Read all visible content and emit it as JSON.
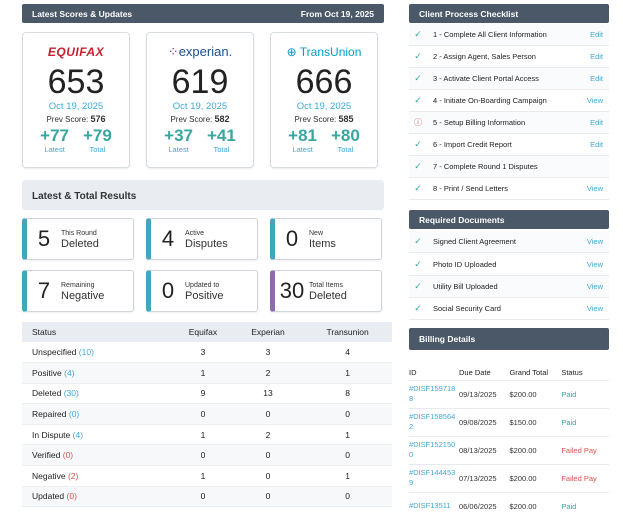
{
  "scores_header": {
    "title": "Latest Scores & Updates",
    "date": "From Oct 19, 2025"
  },
  "bureaus": [
    {
      "logo": "EQUIFAX",
      "score": "653",
      "date": "Oct 19, 2025",
      "prev_label": "Prev Score:",
      "prev": "576",
      "latest": "+77",
      "total": "+79",
      "latest_label": "Latest",
      "total_label": "Total"
    },
    {
      "logo": "experian.",
      "score": "619",
      "date": "Oct 19, 2025",
      "prev_label": "Prev Score:",
      "prev": "582",
      "latest": "+37",
      "total": "+41",
      "latest_label": "Latest",
      "total_label": "Total"
    },
    {
      "logo": "TransUnion",
      "score": "666",
      "date": "Oct 19, 2025",
      "prev_label": "Prev Score:",
      "prev": "585",
      "latest": "+81",
      "total": "+80",
      "latest_label": "Latest",
      "total_label": "Total"
    }
  ],
  "results_header": "Latest & Total Results",
  "result_cards": [
    {
      "n": "5",
      "small": "This Round",
      "big": "Deleted"
    },
    {
      "n": "4",
      "small": "Active",
      "big": "Disputes"
    },
    {
      "n": "0",
      "small": "New",
      "big": "Items"
    },
    {
      "n": "7",
      "small": "Remaining",
      "big": "Negative"
    },
    {
      "n": "0",
      "small": "Updated to",
      "big": "Positive"
    },
    {
      "n": "30",
      "small": "Total Items",
      "big": "Deleted"
    }
  ],
  "status_table": {
    "headers": [
      "Status",
      "Equifax",
      "Experian",
      "Transunion"
    ],
    "rows": [
      {
        "status": "Unspecified",
        "count": "(10)",
        "eq": "3",
        "ex": "3",
        "tu": "4"
      },
      {
        "status": "Positive",
        "count": "(4)",
        "eq": "1",
        "ex": "2",
        "tu": "1"
      },
      {
        "status": "Deleted",
        "count": "(30)",
        "eq": "9",
        "ex": "13",
        "tu": "8"
      },
      {
        "status": "Repaired",
        "count": "(0)",
        "eq": "0",
        "ex": "0",
        "tu": "0"
      },
      {
        "status": "In Dispute",
        "count": "(4)",
        "eq": "1",
        "ex": "2",
        "tu": "1"
      },
      {
        "status": "Verified",
        "count": "(0)",
        "eq": "0",
        "ex": "0",
        "tu": "0"
      },
      {
        "status": "Negative",
        "count": "(2)",
        "eq": "1",
        "ex": "0",
        "tu": "1"
      },
      {
        "status": "Updated",
        "count": "(0)",
        "eq": "0",
        "ex": "0",
        "tu": "0"
      }
    ]
  },
  "checklist_header": "Client Process Checklist",
  "checklist": [
    {
      "label": "1 - Complete All Client Information",
      "action": "Edit",
      "state": "done"
    },
    {
      "label": "2 - Assign Agent, Sales Person",
      "action": "Edit",
      "state": "done"
    },
    {
      "label": "3 - Activate Client Portal Access",
      "action": "Edit",
      "state": "done"
    },
    {
      "label": "4 - Initiate On-Boarding Campaign",
      "action": "View",
      "state": "done"
    },
    {
      "label": "5 - Setup Billing Information",
      "action": "Edit",
      "state": "warn"
    },
    {
      "label": "6 - Import Credit Report",
      "action": "Edit",
      "state": "done"
    },
    {
      "label": "7 - Complete Round 1 Disputes",
      "action": "",
      "state": "done"
    },
    {
      "label": "8 - Print / Send Letters",
      "action": "View",
      "state": "done"
    }
  ],
  "documents_header": "Required Documents",
  "documents": [
    {
      "label": "Signed Client Agreement",
      "action": "View"
    },
    {
      "label": "Photo ID Uploaded",
      "action": "View"
    },
    {
      "label": "Utility Bill Uploaded",
      "action": "View"
    },
    {
      "label": "Social Security Card",
      "action": "View"
    }
  ],
  "billing_header": "Billing Details",
  "billing": {
    "headers": [
      "ID",
      "Due Date",
      "Grand Total",
      "Status"
    ],
    "rows": [
      {
        "id": "#DISF1597188",
        "due": "09/13/2025",
        "total": "$200.00",
        "status": "Paid",
        "pay": ""
      },
      {
        "id": "#DISF1585642",
        "due": "09/08/2025",
        "total": "$150.00",
        "status": "Paid",
        "pay": ""
      },
      {
        "id": "#DISF1521500",
        "due": "08/13/2025",
        "total": "$200.00",
        "status": "Failed",
        "pay": "Pay"
      },
      {
        "id": "#DISF1444539",
        "due": "07/13/2025",
        "total": "$200.00",
        "status": "Failed",
        "pay": "Pay"
      },
      {
        "id": "#DISF13511",
        "due": "06/06/2025",
        "total": "$200.00",
        "status": "Paid",
        "pay": ""
      }
    ]
  },
  "colors": {
    "header": "#4a5868",
    "accent": "#3fa8d8",
    "teal": "#3aa6a0",
    "danger": "#d9534f",
    "purple": "#8c6bb1"
  }
}
